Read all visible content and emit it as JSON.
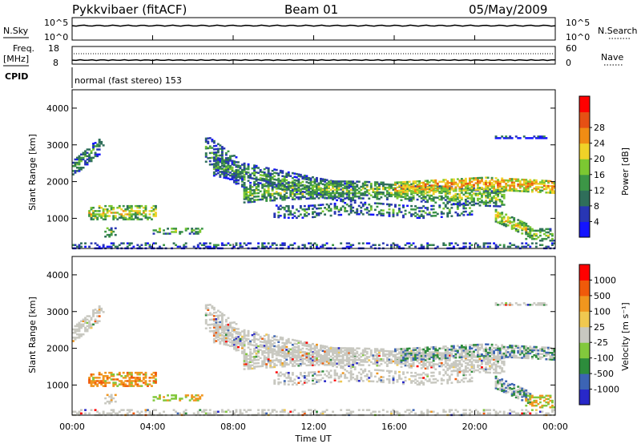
{
  "header": {
    "site_title": "Pykkvibaer (fitACF)",
    "beam": "Beam 01",
    "date": "05/May/2009"
  },
  "nsky_panel": {
    "left_label": "N.Sky",
    "left_ticks": [
      "10^5",
      "10^0"
    ],
    "right_label": "N.Search",
    "right_ticks": [
      "10^5",
      "10^0"
    ]
  },
  "freq_panel": {
    "left_label_1": "Freq.",
    "left_label_2": "[MHz]",
    "left_ticks": [
      "18",
      "8"
    ],
    "right_label": "Nave",
    "right_ticks": [
      "60",
      "0"
    ]
  },
  "cpid_panel": {
    "label": "CPID",
    "mode_text": "normal (fast stereo) 153"
  },
  "chart_data": [
    {
      "type": "heatmap",
      "quantity": "power",
      "ylabel": "Slant Range [km]",
      "ylim": [
        180,
        4500
      ],
      "y_ticks": [
        1000,
        2000,
        3000,
        4000
      ],
      "xlabel": "Time UT",
      "xlim_hours": [
        0,
        24
      ],
      "x_tick_labels": [
        "00:00",
        "04:00",
        "08:00",
        "12:00",
        "16:00",
        "20:00",
        "00:00"
      ],
      "colorbar_label": "Power [dB]",
      "colorbar_ticks": [
        "4",
        "8",
        "12",
        "16",
        "20",
        "24",
        "28"
      ],
      "colorbar_colors": [
        "#1414ff",
        "#2836b4",
        "#2f6e5a",
        "#3c9646",
        "#7cc832",
        "#f0d228",
        "#f08c14",
        "#e65014",
        "#ff0000"
      ]
    },
    {
      "type": "heatmap",
      "quantity": "velocity",
      "ylabel": "Slant Range [km]",
      "ylim": [
        180,
        4500
      ],
      "y_ticks": [
        1000,
        2000,
        3000,
        4000
      ],
      "xlabel": "Time UT",
      "xlim_hours": [
        0,
        24
      ],
      "x_tick_labels": [
        "00:00",
        "04:00",
        "08:00",
        "12:00",
        "16:00",
        "20:00",
        "00:00"
      ],
      "colorbar_label": "Velocity [m s⁻¹]",
      "colorbar_ticks": [
        "1000",
        "500",
        "100",
        "25",
        "-25",
        "-100",
        "-500",
        "-1000"
      ],
      "colorbar_colors": [
        "#2828c8",
        "#3c64b4",
        "#2d8c3c",
        "#82c83c",
        "#c8c8c0",
        "#f0c850",
        "#f0961e",
        "#f05a0a",
        "#ff0000"
      ],
      "ground_scatter_color": "#c8c8c0"
    }
  ],
  "time_axis_label": "Time UT"
}
